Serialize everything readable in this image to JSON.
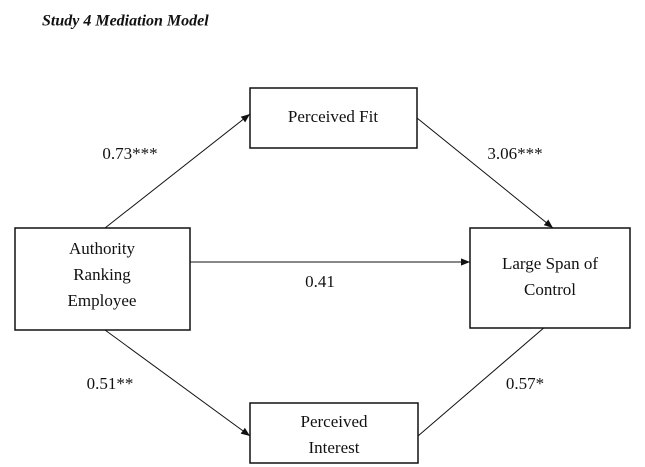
{
  "title": "Study 4 Mediation Model",
  "nodes": [
    {
      "lines": [
        "Perceived Fit"
      ]
    },
    {
      "lines": [
        "Authority",
        "Ranking",
        "Employee"
      ]
    },
    {
      "lines": [
        "Large Span of",
        "Control"
      ]
    },
    {
      "lines": [
        "Perceived",
        "Interest"
      ]
    }
  ],
  "edges": [
    {
      "label": "0.73***"
    },
    {
      "label": "3.06***"
    },
    {
      "label": "0.41"
    },
    {
      "label": "0.51**"
    },
    {
      "label": "0.57*"
    }
  ]
}
